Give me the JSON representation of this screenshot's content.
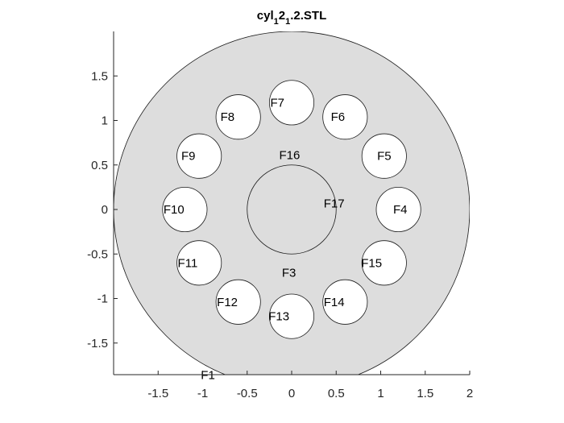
{
  "chart_data": {
    "type": "scatter",
    "title": {
      "parts": [
        {
          "text": "cyl",
          "sub": false
        },
        {
          "text": "1",
          "sub": true
        },
        {
          "text": "2",
          "sub": false
        },
        {
          "text": "1",
          "sub": true
        },
        {
          "text": ".2.STL",
          "sub": false
        }
      ]
    },
    "xlim": [
      -2,
      2
    ],
    "ylim": [
      -1.87,
      2
    ],
    "xticks": [
      -1.5,
      -1,
      -0.5,
      0,
      0.5,
      1,
      1.5,
      2
    ],
    "yticks": [
      -1.5,
      -1,
      -0.5,
      0,
      0.5,
      1,
      1.5
    ],
    "xticklabels": [
      "-1.5",
      "-1",
      "-0.5",
      "0",
      "0.5",
      "1",
      "1.5",
      "2"
    ],
    "yticklabels": [
      "-1.5",
      "-1",
      "-0.5",
      "0",
      "0.5",
      "1",
      "1.5"
    ],
    "xlabel": "",
    "ylabel": "",
    "grid": false,
    "colors": {
      "face": "#dddddd",
      "edge": "#1a1a1a",
      "hole": "#ffffff",
      "axis": "#262626"
    },
    "outer_circle": {
      "cx": 0,
      "cy": 0,
      "r": 2.0
    },
    "inner_circle": {
      "cx": 0,
      "cy": 0,
      "r": 0.5
    },
    "holes": [
      {
        "cx": 1.2,
        "cy": 0.0,
        "r": 0.25
      },
      {
        "cx": 1.039,
        "cy": 0.6,
        "r": 0.25
      },
      {
        "cx": 0.6,
        "cy": 1.039,
        "r": 0.25
      },
      {
        "cx": 0.0,
        "cy": 1.2,
        "r": 0.25
      },
      {
        "cx": -0.6,
        "cy": 1.039,
        "r": 0.25
      },
      {
        "cx": -1.039,
        "cy": 0.6,
        "r": 0.25
      },
      {
        "cx": -1.2,
        "cy": 0.0,
        "r": 0.25
      },
      {
        "cx": -1.039,
        "cy": -0.6,
        "r": 0.25
      },
      {
        "cx": -0.6,
        "cy": -1.039,
        "r": 0.25
      },
      {
        "cx": 0.0,
        "cy": -1.2,
        "r": 0.25
      },
      {
        "cx": 0.6,
        "cy": -1.039,
        "r": 0.25
      },
      {
        "cx": 1.039,
        "cy": -0.6,
        "r": 0.25
      }
    ],
    "face_labels": [
      {
        "text": "F1",
        "x": -1.02,
        "y": -1.86
      },
      {
        "text": "F3",
        "x": -0.11,
        "y": -0.71
      },
      {
        "text": "F4",
        "x": 1.14,
        "y": 0.0
      },
      {
        "text": "F5",
        "x": 0.96,
        "y": 0.6
      },
      {
        "text": "F6",
        "x": 0.44,
        "y": 1.04
      },
      {
        "text": "F7",
        "x": -0.24,
        "y": 1.2
      },
      {
        "text": "F8",
        "x": -0.8,
        "y": 1.04
      },
      {
        "text": "F9",
        "x": -1.24,
        "y": 0.6
      },
      {
        "text": "F10",
        "x": -1.44,
        "y": 0.0
      },
      {
        "text": "F11",
        "x": -1.28,
        "y": -0.6
      },
      {
        "text": "F12",
        "x": -0.84,
        "y": -1.04
      },
      {
        "text": "F13",
        "x": -0.26,
        "y": -1.2
      },
      {
        "text": "F14",
        "x": 0.36,
        "y": -1.04
      },
      {
        "text": "F15",
        "x": 0.78,
        "y": -0.6
      },
      {
        "text": "F16",
        "x": -0.14,
        "y": 0.61
      },
      {
        "text": "F17",
        "x": 0.36,
        "y": 0.07
      }
    ]
  }
}
